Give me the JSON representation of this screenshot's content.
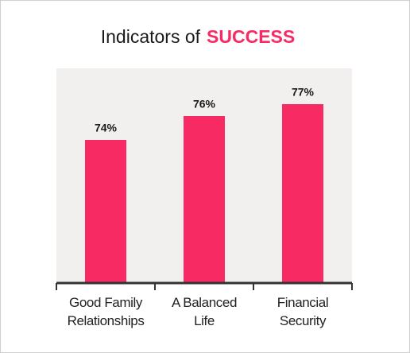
{
  "chart_data": {
    "type": "bar",
    "title": "Indicators of",
    "title_highlight": "SUCCESS",
    "categories": [
      "Good Family Relationships",
      "A Balanced Life",
      "Financial Security"
    ],
    "values": [
      74,
      76,
      77
    ],
    "value_labels": [
      "74%",
      "76%",
      "77%"
    ],
    "color": "#f72a63",
    "highlight_color": "#f72a63",
    "ylim": [
      62,
      80
    ]
  }
}
